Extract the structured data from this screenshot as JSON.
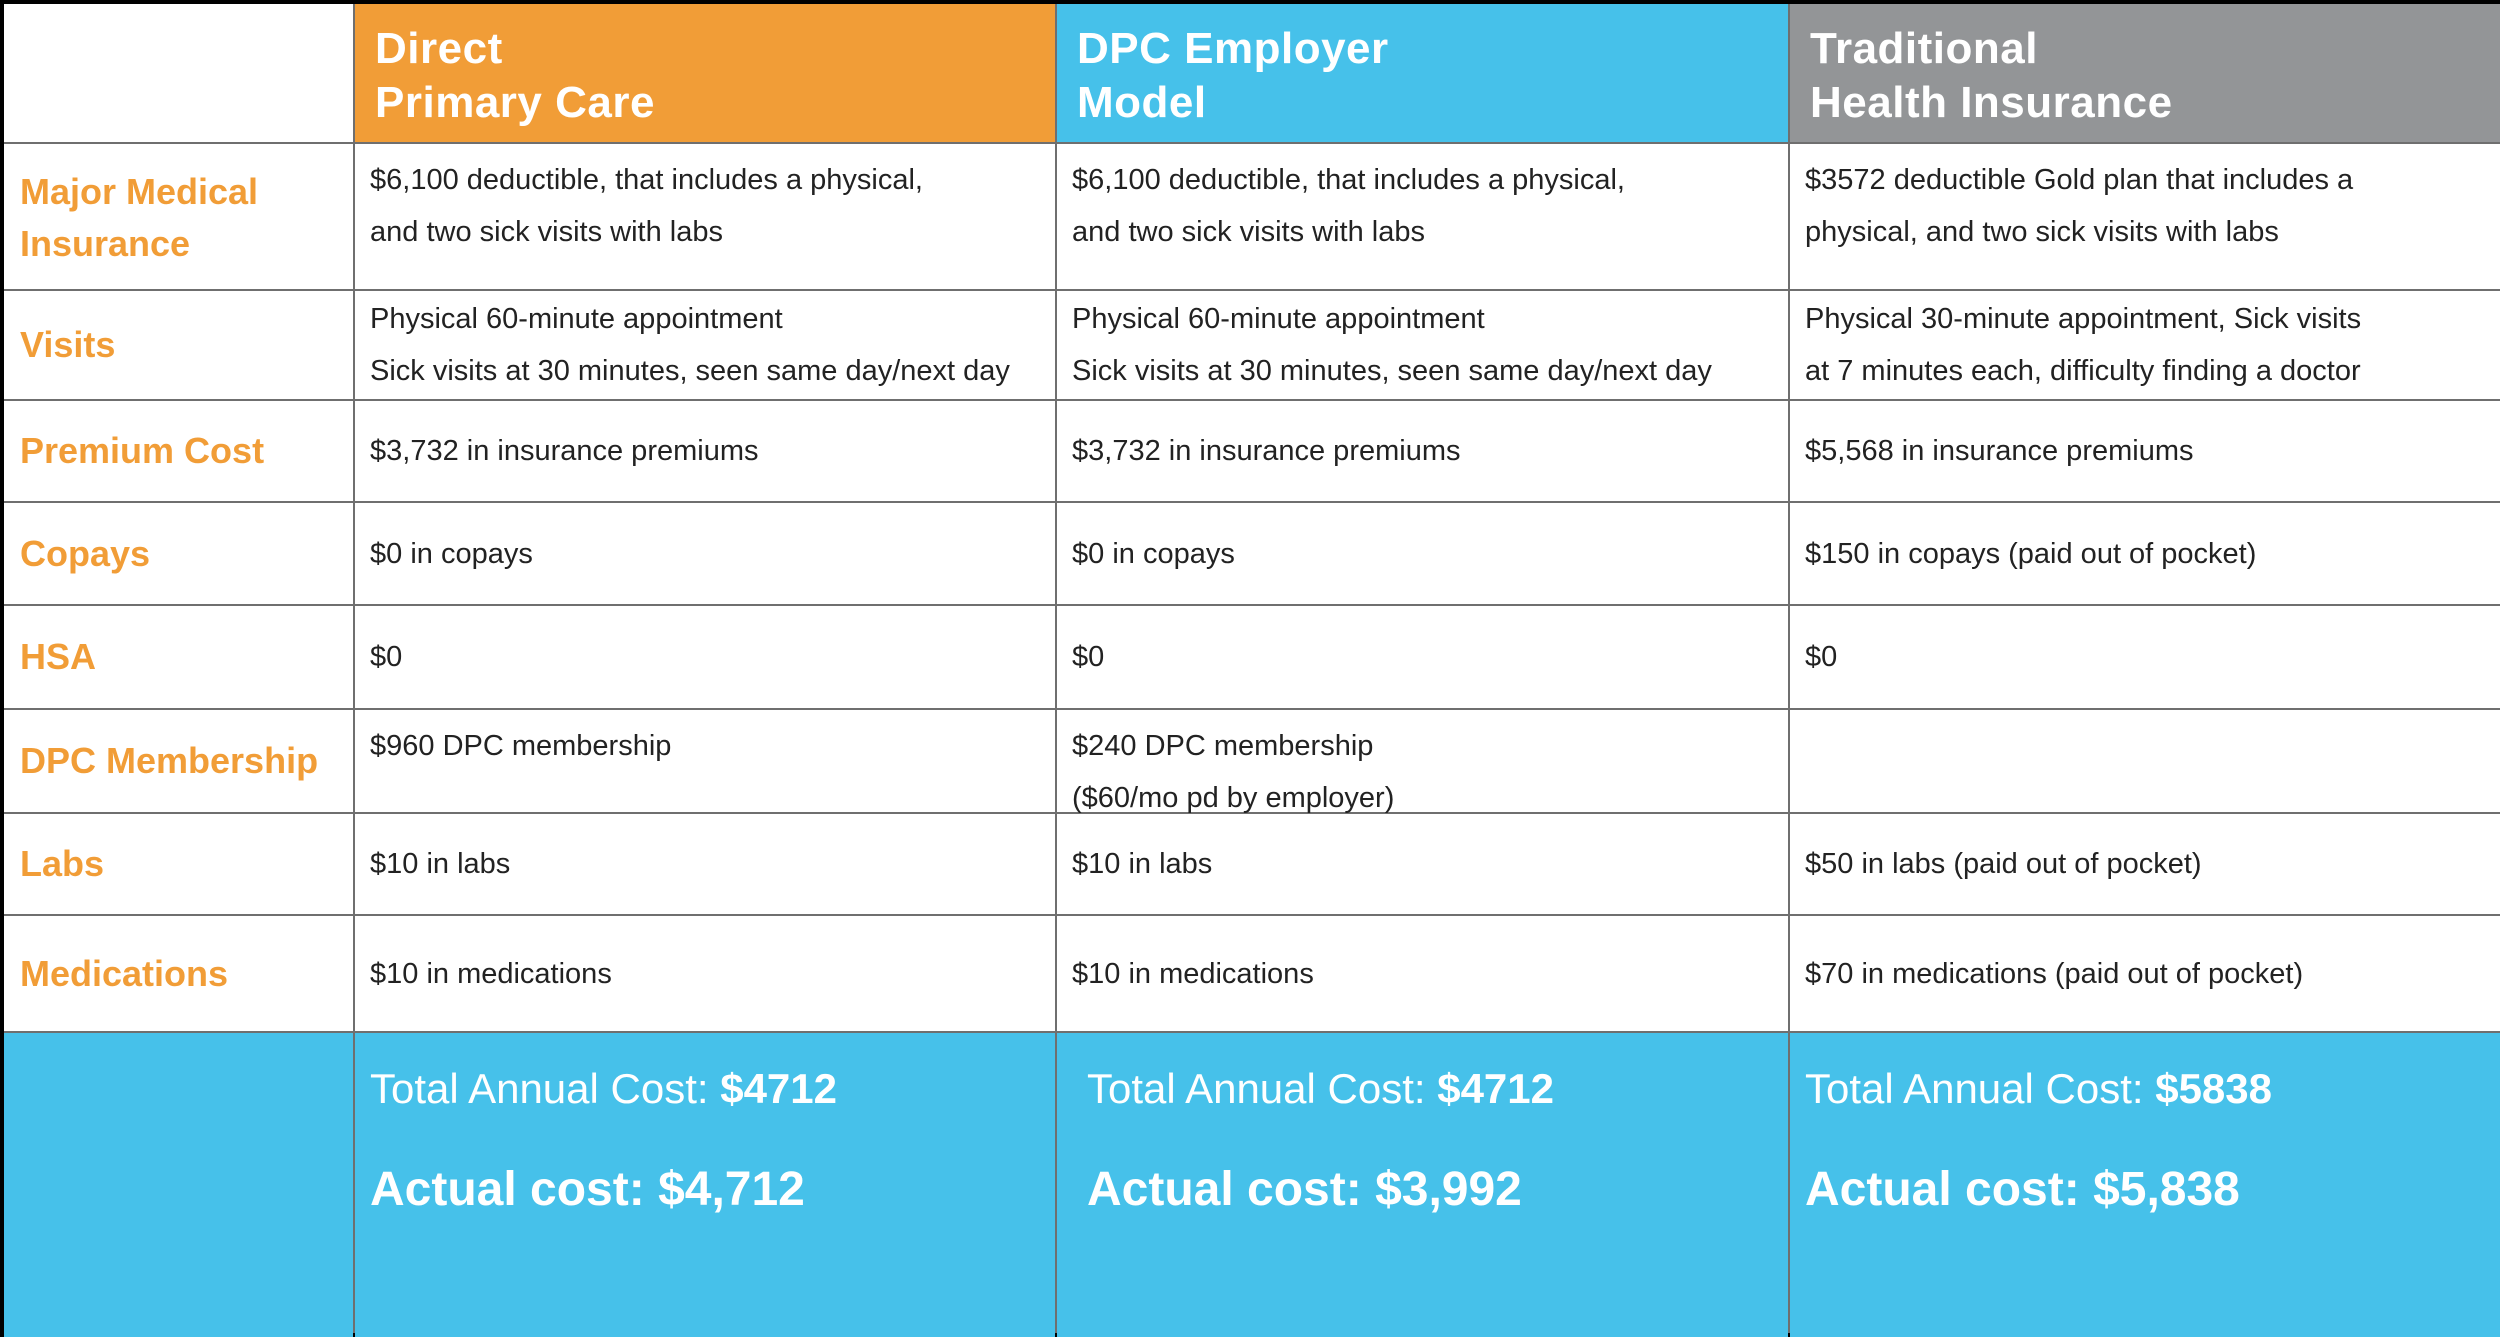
{
  "columns": [
    {
      "lines": [
        "Direct",
        "Primary Care"
      ],
      "color": "#f19d37"
    },
    {
      "lines": [
        "DPC Employer",
        "Model"
      ],
      "color": "#46c1ea"
    },
    {
      "lines": [
        "Traditional",
        "Health Insurance"
      ],
      "color": "#939597"
    }
  ],
  "rows": [
    {
      "label": "Major Medical Insurance",
      "cells": [
        [
          "$6,100 deductible, that includes a physical,",
          "and two sick visits with labs"
        ],
        [
          "$6,100 deductible, that includes a physical,",
          "and two sick visits with labs"
        ],
        [
          "$3572 deductible Gold plan that includes a",
          "physical, and two sick visits with labs"
        ]
      ]
    },
    {
      "label": "Visits",
      "cells": [
        [
          "Physical 60-minute appointment",
          "Sick visits at 30 minutes, seen same day/next day"
        ],
        [
          "Physical 60-minute appointment",
          "Sick visits at 30 minutes, seen same day/next day"
        ],
        [
          "Physical 30-minute appointment, Sick visits",
          "at 7 minutes each, difficulty finding a doctor"
        ]
      ]
    },
    {
      "label": "Premium Cost",
      "cells": [
        [
          "$3,732 in insurance premiums"
        ],
        [
          "$3,732 in insurance premiums"
        ],
        [
          "$5,568 in insurance premiums"
        ]
      ]
    },
    {
      "label": "Copays",
      "cells": [
        [
          "$0 in copays"
        ],
        [
          "$0 in copays"
        ],
        [
          "$150 in copays (paid out of pocket)"
        ]
      ]
    },
    {
      "label": "HSA",
      "cells": [
        [
          "$0"
        ],
        [
          "$0"
        ],
        [
          "$0"
        ]
      ]
    },
    {
      "label": "DPC Membership",
      "cells": [
        [
          "$960 DPC membership"
        ],
        [
          "$240 DPC membership",
          "($60/mo pd by employer)"
        ],
        []
      ]
    },
    {
      "label": "Labs",
      "cells": [
        [
          "$10 in labs"
        ],
        [
          "$10 in labs"
        ],
        [
          "$50 in labs (paid out of pocket)"
        ]
      ]
    },
    {
      "label": "Medications",
      "cells": [
        [
          "$10 in medications"
        ],
        [
          "$10 in medications"
        ],
        [
          "$70 in medications (paid out of pocket)"
        ]
      ]
    }
  ],
  "totals": {
    "total_label": "Total Annual Cost:",
    "actual_label": "Actual cost:",
    "values": [
      {
        "total": "$4712",
        "actual": "$4,712"
      },
      {
        "total": "$4712",
        "actual": "$3,992"
      },
      {
        "total": "$5838",
        "actual": "$5,838"
      }
    ]
  },
  "colors": {
    "orange": "#f19d37",
    "blue": "#46c1ea",
    "gray": "#939597",
    "grid": "#6f6f6f"
  }
}
